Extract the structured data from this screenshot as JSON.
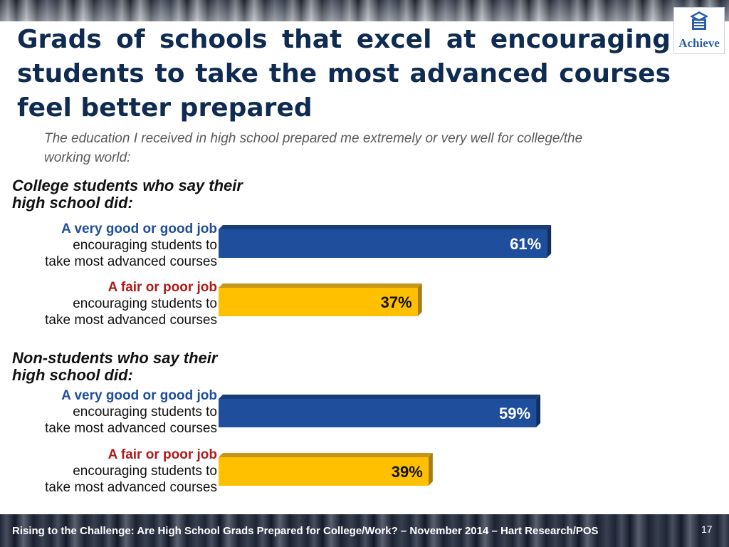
{
  "title": "Grads of schools that excel at encouraging students to take the most advanced courses feel better prepared",
  "subtitle": "The education I received in high school prepared me extremely or very well for college/the working world:",
  "logo_text": "Achieve",
  "groups": [
    {
      "label_line1": "College students who say their",
      "label_line2": "high school did:",
      "bars": [
        {
          "highlight": "A very good or good job",
          "line2": "encouraging students to",
          "line3": "take most advanced courses",
          "kind": "good"
        },
        {
          "highlight": "A fair or poor job",
          "line2": "encouraging students to",
          "line3": "take most advanced courses",
          "kind": "poor"
        }
      ]
    },
    {
      "label_line1": "Non-students who say their",
      "label_line2": "high school did:",
      "bars": [
        {
          "highlight": "A very good or good job",
          "line2": "encouraging students to",
          "line3": "take most advanced courses",
          "kind": "good"
        },
        {
          "highlight": "A fair or poor job",
          "line2": "encouraging students to",
          "line3": "take most advanced courses",
          "kind": "poor"
        }
      ]
    }
  ],
  "chart_data": {
    "type": "bar",
    "orientation": "horizontal",
    "categories": [
      "College students – A very good or good job encouraging students to take most advanced courses",
      "College students – A fair or poor job encouraging students to take most advanced courses",
      "Non-students – A very good or good job encouraging students to take most advanced courses",
      "Non-students – A fair or poor job encouraging students to take most advanced courses"
    ],
    "values": [
      61,
      37,
      59,
      39
    ],
    "value_labels": [
      "61%",
      "37%",
      "59%",
      "39%"
    ],
    "unit": "%",
    "xlim": [
      0,
      100
    ],
    "grid": false,
    "colors": {
      "good": "#1f4e9c",
      "poor": "#ffc000"
    }
  },
  "footer": {
    "text": "Rising to the Challenge:  Are High School Grads Prepared for College/Work? – November 2014 – Hart Research/POS",
    "page": "17"
  }
}
